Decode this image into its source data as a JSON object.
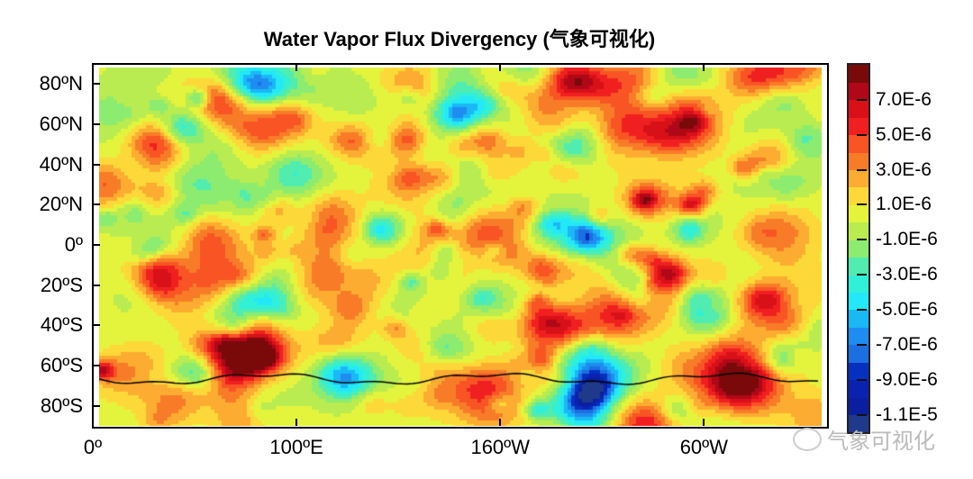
{
  "chart_data": {
    "type": "heatmap",
    "title": "Water Vapor Flux Divergency (气象可视化)",
    "projection": "cylindrical equidistant, centered 180º",
    "x_ticks": [
      {
        "lon": 0,
        "label": "0º"
      },
      {
        "lon": 100,
        "label": "100ºE"
      },
      {
        "lon": 200,
        "label": "160ºW"
      },
      {
        "lon": 300,
        "label": "60ºW"
      }
    ],
    "y_ticks": [
      {
        "lat": 80,
        "label": "80ºN"
      },
      {
        "lat": 60,
        "label": "60ºN"
      },
      {
        "lat": 40,
        "label": "40ºN"
      },
      {
        "lat": 20,
        "label": "20ºN"
      },
      {
        "lat": 0,
        "label": "0º"
      },
      {
        "lat": -20,
        "label": "20ºS"
      },
      {
        "lat": -40,
        "label": "40ºS"
      },
      {
        "lat": -60,
        "label": "60ºS"
      },
      {
        "lat": -80,
        "label": "80ºS"
      }
    ],
    "xlim": [
      0,
      360
    ],
    "ylim": [
      -90,
      90
    ],
    "colorbar": {
      "levels_min": -1.2e-05,
      "levels_max": 9e-06,
      "step": 1e-06,
      "tick_labels": [
        {
          "value": 7e-06,
          "label": "7.0E-6"
        },
        {
          "value": 5e-06,
          "label": "5.0E-6"
        },
        {
          "value": 3e-06,
          "label": "3.0E-6"
        },
        {
          "value": 1e-06,
          "label": "1.0E-6"
        },
        {
          "value": -1e-06,
          "label": "-1.0E-6"
        },
        {
          "value": -3e-06,
          "label": "-3.0E-6"
        },
        {
          "value": -5e-06,
          "label": "-5.0E-6"
        },
        {
          "value": -7e-06,
          "label": "-7.0E-6"
        },
        {
          "value": -9e-06,
          "label": "-9.0E-6"
        },
        {
          "value": -1.1e-05,
          "label": "-1.1E-5"
        }
      ],
      "colors_low_to_high": [
        "#1f3a8a",
        "#0a1fa0",
        "#0a22b0",
        "#0630c0",
        "#1c6fe0",
        "#1e8cf0",
        "#1ab8f4",
        "#22e8f8",
        "#30f0d8",
        "#50ecb0",
        "#8cec70",
        "#b8ec50",
        "#e4f43c",
        "#fcd838",
        "#fcac30",
        "#f87c28",
        "#f85424",
        "#f02020",
        "#d81018",
        "#b00818",
        "#7a0a0a"
      ]
    }
  },
  "watermark": "气象可视化"
}
